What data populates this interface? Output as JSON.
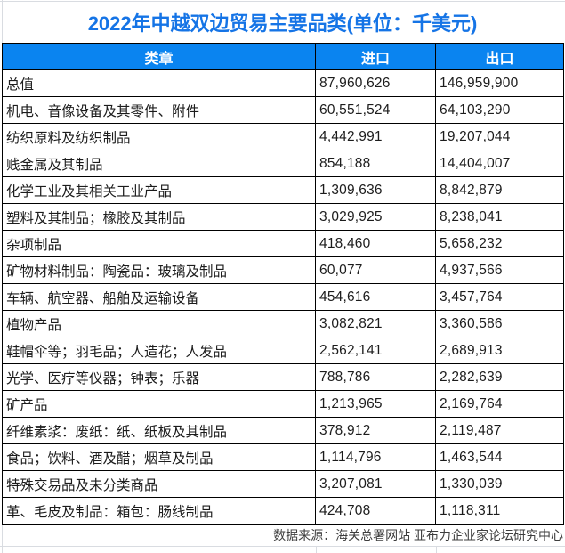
{
  "title": "2022年中越双边贸易主要品类(单位：千美元)",
  "table": {
    "columns": [
      "类章",
      "进口",
      "出口"
    ],
    "rows": [
      [
        "总值",
        "87,960,626",
        "146,959,900"
      ],
      [
        "机电、音像设备及其零件、附件",
        "60,551,524",
        "64,103,290"
      ],
      [
        "纺织原料及纺织制品",
        "4,442,991",
        "19,207,044"
      ],
      [
        "贱金属及其制品",
        "854,188",
        "14,404,007"
      ],
      [
        "化学工业及其相关工业产品",
        "1,309,636",
        "8,842,879"
      ],
      [
        "塑料及其制品；橡胶及其制品",
        "3,029,925",
        "8,238,041"
      ],
      [
        "杂项制品",
        "418,460",
        "5,658,232"
      ],
      [
        "矿物材料制品：陶瓷品：玻璃及制品",
        "60,077",
        "4,937,566"
      ],
      [
        "车辆、航空器、船舶及运输设备",
        "454,616",
        "3,457,764"
      ],
      [
        "植物产品",
        "3,082,821",
        "3,360,586"
      ],
      [
        "鞋帽伞等；羽毛品；人造花；人发品",
        "2,562,141",
        "2,689,913"
      ],
      [
        "光学、医疗等仪器；钟表；乐器",
        "788,786",
        "2,282,639"
      ],
      [
        "矿产品",
        "1,213,965",
        "2,169,764"
      ],
      [
        "纤维素浆：废纸：纸、纸板及其制品",
        "378,912",
        "2,119,487"
      ],
      [
        "食品；饮料、酒及醋；烟草及制品",
        "1,114,796",
        "1,463,544"
      ],
      [
        "特殊交易品及未分类商品",
        "3,207,081",
        "1,330,039"
      ],
      [
        "革、毛皮及制品：箱包：肠线制品",
        "424,708",
        "1,118,311"
      ]
    ]
  },
  "footer": "数据来源：海关总署网站 亚布力企业家论坛研究中心",
  "colors": {
    "title": "#1574e6",
    "header_bg": "#0a84f0",
    "header_text": "#ffffff",
    "table_border": "#000000"
  },
  "chart_data": {
    "type": "table",
    "title": "2022年中越双边贸易主要品类(单位：千美元)",
    "unit": "千美元",
    "categories": [
      "总值",
      "机电、音像设备及其零件、附件",
      "纺织原料及纺织制品",
      "贱金属及其制品",
      "化学工业及其相关工业产品",
      "塑料及其制品；橡胶及其制品",
      "杂项制品",
      "矿物材料制品：陶瓷品：玻璃及制品",
      "车辆、航空器、船舶及运输设备",
      "植物产品",
      "鞋帽伞等；羽毛品；人造花；人发品",
      "光学、医疗等仪器；钟表；乐器",
      "矿产品",
      "纤维素浆：废纸：纸、纸板及其制品",
      "食品；饮料、酒及醋；烟草及制品",
      "特殊交易品及未分类商品",
      "革、毛皮及制品：箱包：肠线制品"
    ],
    "series": [
      {
        "name": "进口",
        "values": [
          87960626,
          60551524,
          4442991,
          854188,
          1309636,
          3029925,
          418460,
          60077,
          454616,
          3082821,
          2562141,
          788786,
          1213965,
          378912,
          1114796,
          3207081,
          424708
        ]
      },
      {
        "name": "出口",
        "values": [
          146959900,
          64103290,
          19207044,
          14404007,
          8842879,
          8238041,
          5658232,
          4937566,
          3457764,
          3360586,
          2689913,
          2282639,
          2169764,
          2119487,
          1463544,
          1330039,
          1118311
        ]
      }
    ],
    "source_note": "数据来源：海关总署网站 亚布力企业家论坛研究中心"
  }
}
